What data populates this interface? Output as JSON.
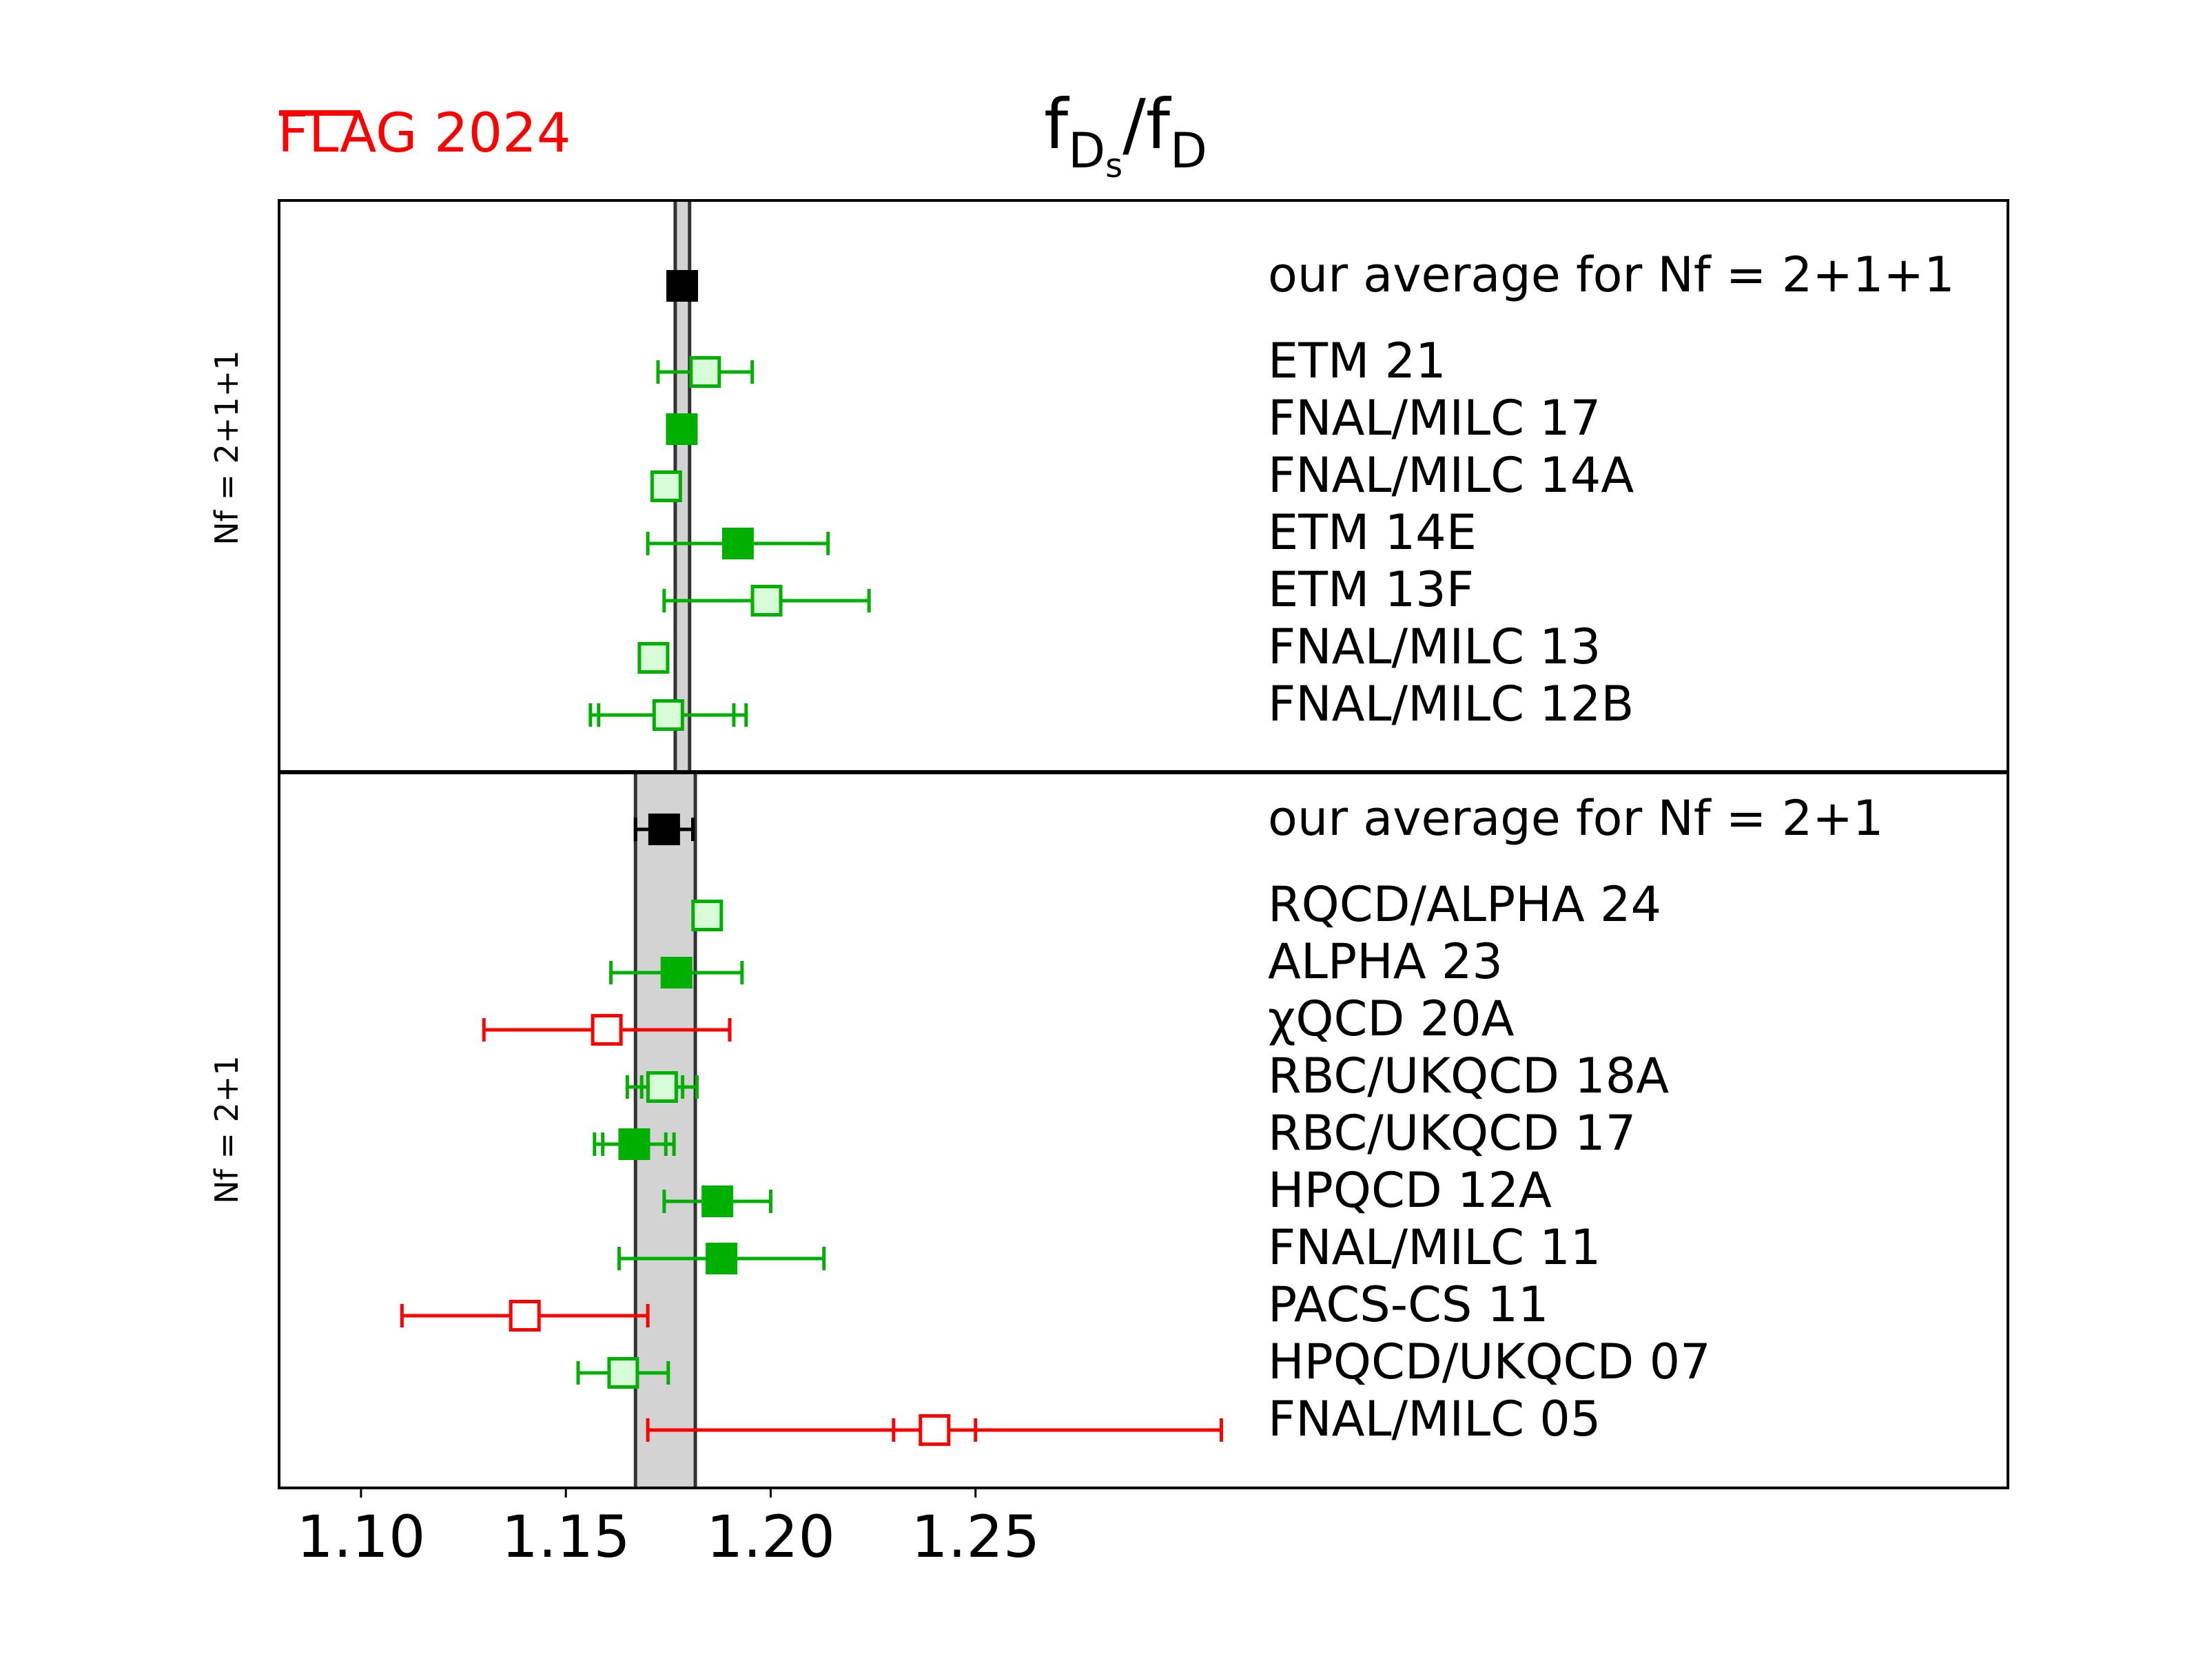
{
  "logo": {
    "text": "FLAG",
    "year": "2024",
    "color": "#ff0000"
  },
  "chart_data": {
    "type": "scatter",
    "title": "f_Ds/f_D",
    "title_main": "f",
    "title_sub1": "D",
    "title_sub2": "s",
    "title_mid": "/f",
    "title_sub3": "D",
    "xlim": [
      1.08,
      1.502
    ],
    "xticks": [
      1.1,
      1.15,
      1.2,
      1.25
    ],
    "xtick_labels": [
      "1.10",
      "1.15",
      "1.20",
      "1.25"
    ],
    "grid": false,
    "colors": {
      "filled_green": "#00b000",
      "light_green_fill": "#d8fcd8",
      "red": "#ff0000",
      "average": "#000000",
      "band": "#d3d3d3"
    },
    "panels": [
      {
        "ylabel": "Nf = 2+1+1",
        "band": [
          1.1767,
          1.1802
        ],
        "rows": [
          {
            "label": "our average for Nf = 2+1+1",
            "value": 1.1784,
            "err_lo": 0.0017,
            "err_hi": 0.0017,
            "style": "average"
          },
          {
            "label": "ETM 21",
            "value": 1.184,
            "err_lo": 0.0115,
            "err_hi": 0.0115,
            "style": "light"
          },
          {
            "label": "FNAL/MILC 17",
            "value": 1.1783,
            "err_lo": 0.0016,
            "err_hi": 0.0016,
            "style": "filled"
          },
          {
            "label": "FNAL/MILC 14A",
            "value": 1.1745,
            "err_lo": 0.0019,
            "err_hi": 0.0019,
            "style": "light"
          },
          {
            "label": "ETM 14E",
            "value": 1.192,
            "err_lo": 0.022,
            "err_hi": 0.022,
            "style": "filled"
          },
          {
            "label": "ETM 13F",
            "value": 1.199,
            "err_lo": 0.025,
            "err_hi": 0.025,
            "style": "light"
          },
          {
            "label": "FNAL/MILC 13",
            "value": 1.1714,
            "err_lo": 0.002,
            "err_hi": 0.002,
            "style": "light"
          },
          {
            "label": "FNAL/MILC 12B",
            "value": 1.175,
            "err_lo": 0.019,
            "err_hi": 0.019,
            "stat_lo": 0.017,
            "stat_hi": 0.016,
            "style": "light"
          }
        ]
      },
      {
        "ylabel": "Nf = 2+1",
        "band": [
          1.167,
          1.1816
        ],
        "rows": [
          {
            "label": "our average for Nf = 2+1",
            "value": 1.174,
            "err_lo": 0.007,
            "err_hi": 0.007,
            "style": "average"
          },
          {
            "label": "RQCD/ALPHA 24",
            "value": 1.1845,
            "err_lo": 0.002,
            "err_hi": 0.002,
            "style": "light"
          },
          {
            "label": "ALPHA 23",
            "value": 1.177,
            "err_lo": 0.016,
            "err_hi": 0.016,
            "style": "filled"
          },
          {
            "label": "χQCD 20A",
            "value": 1.16,
            "err_lo": 0.03,
            "err_hi": 0.03,
            "style": "red"
          },
          {
            "label": "RBC/UKQCD 18A",
            "value": 1.1735,
            "err_lo": 0.0085,
            "err_hi": 0.0085,
            "stat_lo": 0.005,
            "stat_hi": 0.005,
            "style": "light"
          },
          {
            "label": "RBC/UKQCD 17",
            "value": 1.1667,
            "err_lo": 0.0097,
            "err_hi": 0.0097,
            "stat_lo": 0.0077,
            "stat_hi": 0.0077,
            "style": "filled"
          },
          {
            "label": "HPQCD 12A",
            "value": 1.187,
            "err_lo": 0.013,
            "err_hi": 0.013,
            "style": "filled"
          },
          {
            "label": "FNAL/MILC 11",
            "value": 1.188,
            "err_lo": 0.025,
            "err_hi": 0.025,
            "style": "filled"
          },
          {
            "label": "PACS-CS 11",
            "value": 1.14,
            "err_lo": 0.03,
            "err_hi": 0.03,
            "style": "red"
          },
          {
            "label": "HPQCD/UKQCD 07",
            "value": 1.164,
            "err_lo": 0.011,
            "err_hi": 0.011,
            "style": "light"
          },
          {
            "label": "FNAL/MILC 05",
            "value": 1.24,
            "err_lo": 0.07,
            "err_hi": 0.07,
            "stat_lo": 0.01,
            "stat_hi": 0.01,
            "style": "red"
          }
        ]
      }
    ]
  }
}
